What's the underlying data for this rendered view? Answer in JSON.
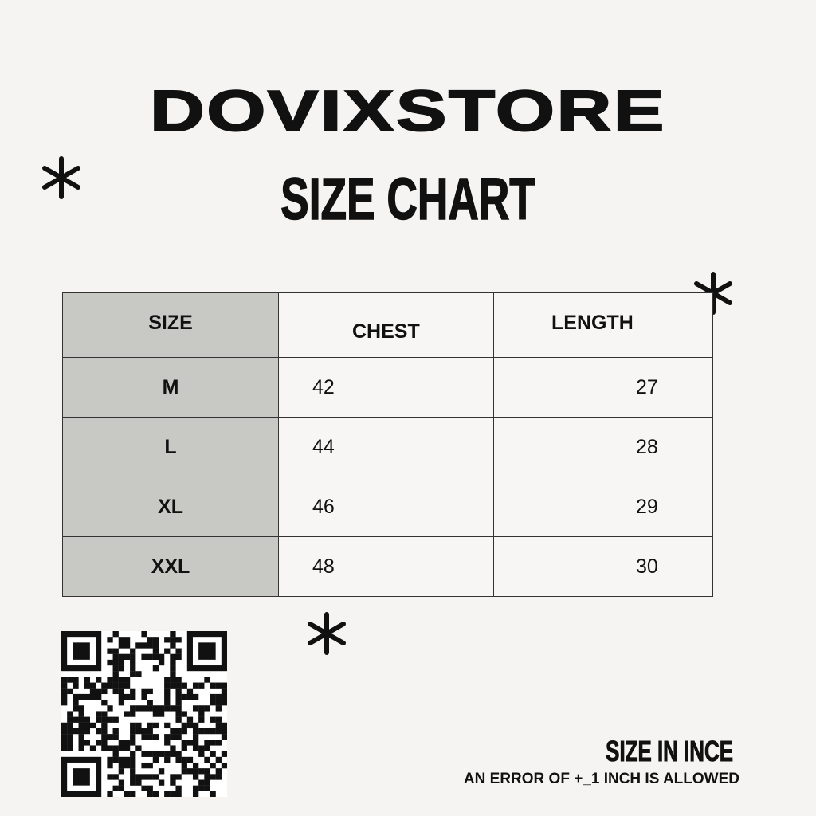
{
  "brand": "DOVIXSTORE",
  "title": "SIZE CHART",
  "table": {
    "headers": [
      "SIZE",
      "CHEST",
      "LENGTH"
    ],
    "rows": [
      {
        "size": "M",
        "chest": "42",
        "length": "27"
      },
      {
        "size": "L",
        "chest": "44",
        "length": "28"
      },
      {
        "size": "XL",
        "chest": "46",
        "length": "29"
      },
      {
        "size": "XXL",
        "chest": "48",
        "length": "30"
      }
    ]
  },
  "note": {
    "unit": "SIZE IN INCE",
    "tolerance": "AN ERROR OF +_1 INCH IS ALLOWED"
  },
  "colors": {
    "background": "#f5f4f2",
    "size_column": "#c8c8c4",
    "text": "#111111"
  },
  "icons": [
    "asterisk-icon",
    "qr-code"
  ]
}
